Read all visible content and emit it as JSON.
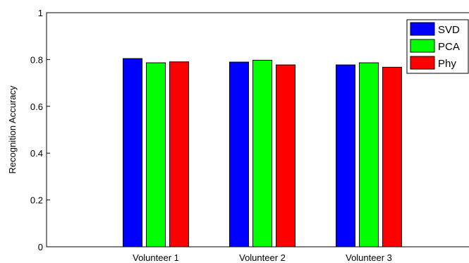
{
  "chart_data": {
    "type": "bar",
    "title": "",
    "xlabel": "",
    "ylabel": "Recognition Accuracy",
    "ylim": [
      0,
      1
    ],
    "yticks": [
      0,
      0.2,
      0.4,
      0.6,
      0.8,
      1
    ],
    "ytick_labels": [
      "0",
      "0.2",
      "0.4",
      "0.6",
      "0.8",
      "1"
    ],
    "categories": [
      "Volunteer 1",
      "Volunteer 2",
      "Volunteer 3"
    ],
    "series": [
      {
        "name": "SVD",
        "color": "#0000ff",
        "values": [
          0.804,
          0.789,
          0.777
        ]
      },
      {
        "name": "PCA",
        "color": "#00ff00",
        "values": [
          0.786,
          0.797,
          0.786
        ]
      },
      {
        "name": "Phy",
        "color": "#ff0000",
        "values": [
          0.79,
          0.777,
          0.767
        ]
      }
    ],
    "grid": false,
    "legend_position": "top-right"
  }
}
